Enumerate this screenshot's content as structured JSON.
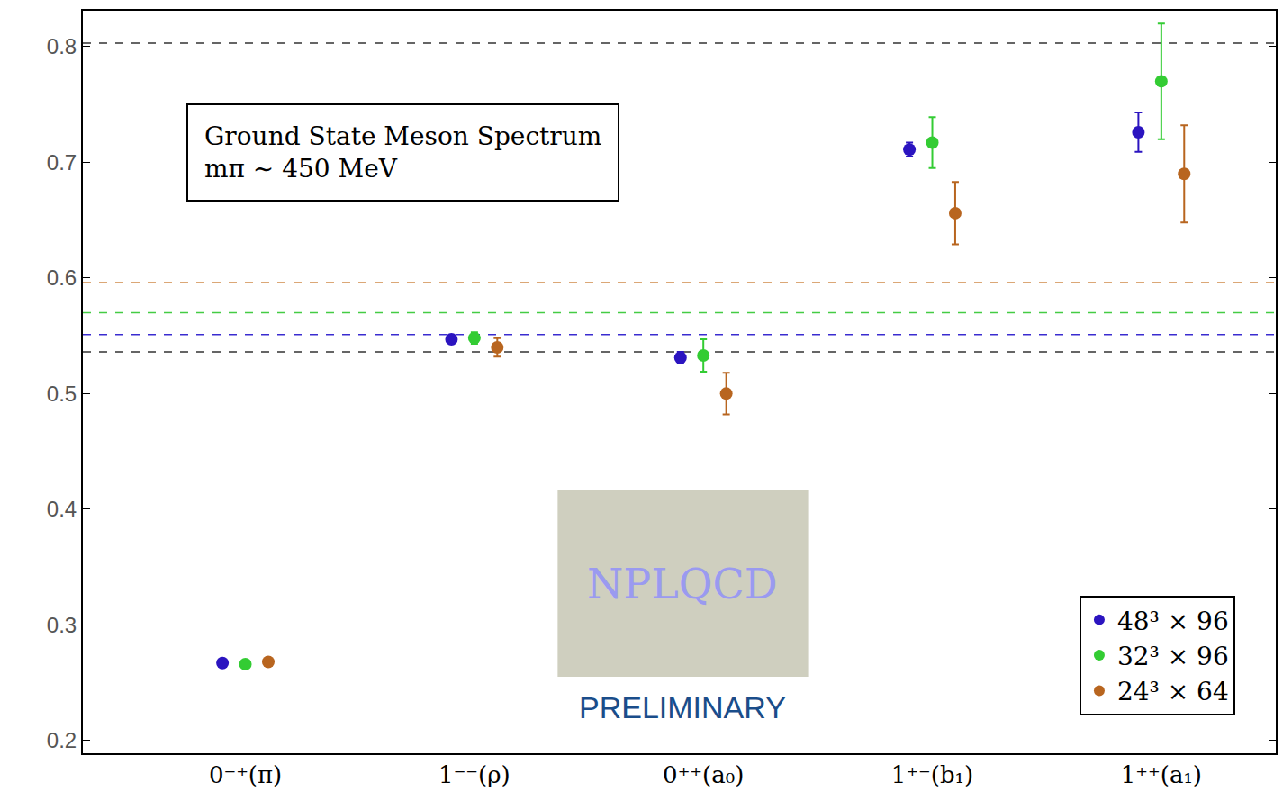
{
  "chart_data": {
    "type": "scatter",
    "title": "Ground State Meson Spectrum",
    "subtitle": "mπ ∼ 450 MeV",
    "annotations": [
      "NPLQCD",
      "PRELIMINARY"
    ],
    "categories": [
      "0⁻⁺(π)",
      "1⁻⁻(ρ)",
      "0⁺⁺(a₀)",
      "1⁺⁻(b₁)",
      "1⁺⁺(a₁)"
    ],
    "series": [
      {
        "name": "48³ × 96",
        "color": "#2b14c0",
        "values": [
          0.267,
          0.547,
          0.531,
          0.711,
          0.726
        ],
        "errors": [
          0.002,
          0.003,
          0.005,
          0.006,
          0.017
        ]
      },
      {
        "name": "32³ × 96",
        "color": "#33cc33",
        "values": [
          0.266,
          0.548,
          0.533,
          0.717,
          0.77
        ],
        "errors": [
          0.002,
          0.005,
          0.014,
          0.022,
          0.05
        ]
      },
      {
        "name": "24³ × 64",
        "color": "#b8651f",
        "values": [
          0.268,
          0.54,
          0.5,
          0.656,
          0.69
        ],
        "errors": [
          0.002,
          0.008,
          0.018,
          0.027,
          0.042
        ]
      }
    ],
    "reference_lines": [
      {
        "value": 0.803,
        "color": "#333333",
        "line_style": "dashed"
      },
      {
        "value": 0.596,
        "color": "#d08a4a",
        "line_style": "dashed"
      },
      {
        "value": 0.57,
        "color": "#44cc44",
        "line_style": "dashed"
      },
      {
        "value": 0.551,
        "color": "#3a2cd0",
        "line_style": "dashed"
      },
      {
        "value": 0.536,
        "color": "#333333",
        "line_style": "dashed"
      }
    ],
    "ylim": [
      0.189,
      0.831
    ],
    "yticks": [
      0.2,
      0.3,
      0.4,
      0.5,
      0.6,
      0.7,
      0.8
    ],
    "grid": false,
    "legend": "lower right",
    "marker": "circle"
  }
}
